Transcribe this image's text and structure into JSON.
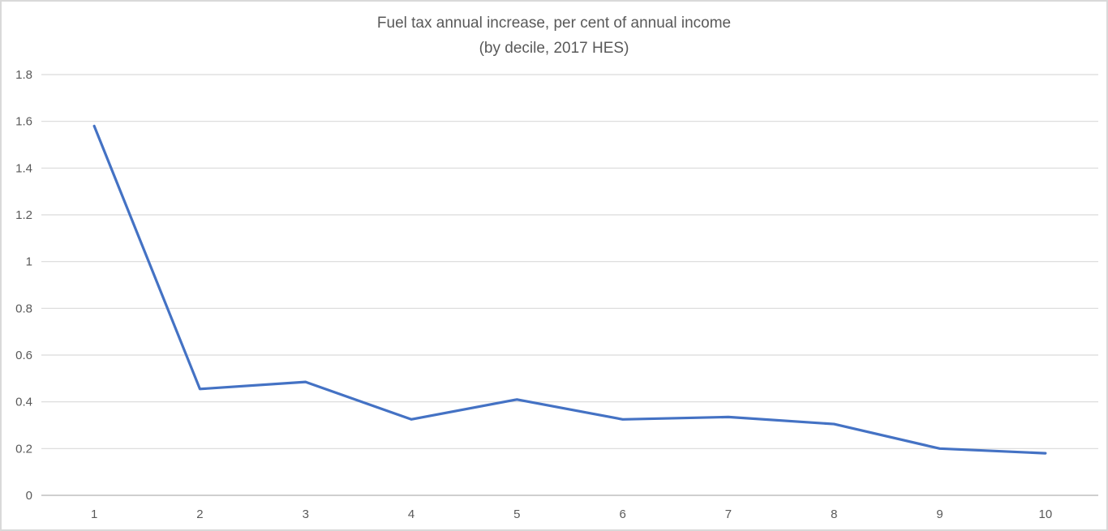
{
  "chart_data": {
    "type": "line",
    "title": "Fuel tax annual increase, per cent of annual income",
    "subtitle": "(by decile, 2017 HES)",
    "xlabel": "",
    "ylabel": "",
    "categories": [
      "1",
      "2",
      "3",
      "4",
      "5",
      "6",
      "7",
      "8",
      "9",
      "10"
    ],
    "series": [
      {
        "name": "Fuel tax annual increase (% of annual income)",
        "values": [
          1.58,
          0.455,
          0.485,
          0.325,
          0.41,
          0.325,
          0.335,
          0.305,
          0.2,
          0.18
        ]
      }
    ],
    "ylim": [
      0,
      1.8
    ],
    "yticks": [
      0,
      0.2,
      0.4,
      0.6,
      0.8,
      1,
      1.2,
      1.4,
      1.6,
      1.8
    ],
    "ytick_labels": [
      "0",
      "0.2",
      "0.4",
      "0.6",
      "0.8",
      "1",
      "1.2",
      "1.4",
      "1.6",
      "1.8"
    ],
    "xtick_labels": [
      "1",
      "2",
      "3",
      "4",
      "5",
      "6",
      "7",
      "8",
      "9",
      "10"
    ],
    "grid": true,
    "legend": false,
    "colors": {
      "line": "#4472C4",
      "gridline": "#D9D9D9",
      "axis_line": "#BFBFBF",
      "text": "#595959",
      "frame_border": "#D9D9D9",
      "background": "#FFFFFF"
    }
  }
}
